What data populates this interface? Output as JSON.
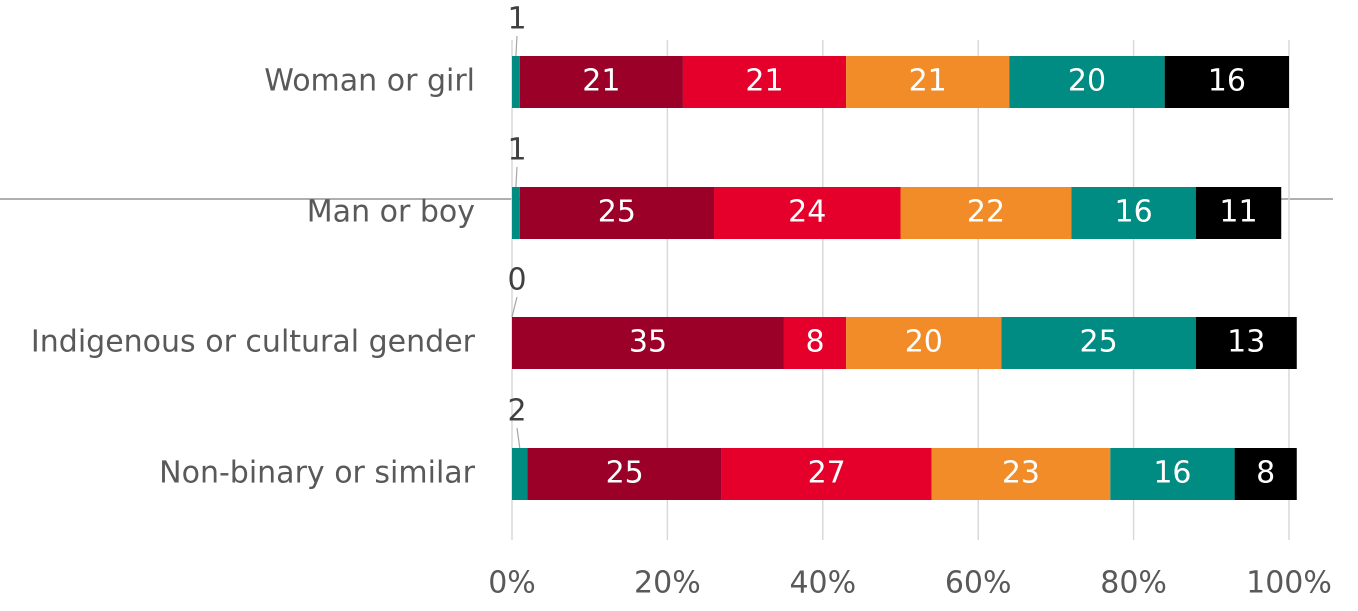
{
  "chart_data": {
    "type": "stacked-bar-horizontal",
    "categories": [
      "Woman or girl",
      "Man or boy",
      "Indigenous or cultural gender",
      "Non-binary or similar"
    ],
    "series": [
      {
        "color": "#008c80",
        "values": [
          1,
          1,
          0,
          2
        ]
      },
      {
        "color": "#9b0029",
        "values": [
          21,
          25,
          35,
          25
        ]
      },
      {
        "color": "#e4002b",
        "values": [
          21,
          24,
          8,
          27
        ]
      },
      {
        "color": "#f28c28",
        "values": [
          21,
          22,
          20,
          23
        ]
      },
      {
        "color": "#008c82",
        "values": [
          20,
          16,
          25,
          16
        ]
      },
      {
        "color": "#000000",
        "values": [
          16,
          11,
          13,
          8
        ]
      }
    ],
    "xlim": [
      0,
      100
    ],
    "xticks": [
      {
        "value": 0,
        "label": "0%"
      },
      {
        "value": 20,
        "label": "20%"
      },
      {
        "value": 40,
        "label": "40%"
      },
      {
        "value": 60,
        "label": "60%"
      },
      {
        "value": 80,
        "label": "80%"
      },
      {
        "value": 100,
        "label": "100%"
      }
    ],
    "grid": true
  }
}
